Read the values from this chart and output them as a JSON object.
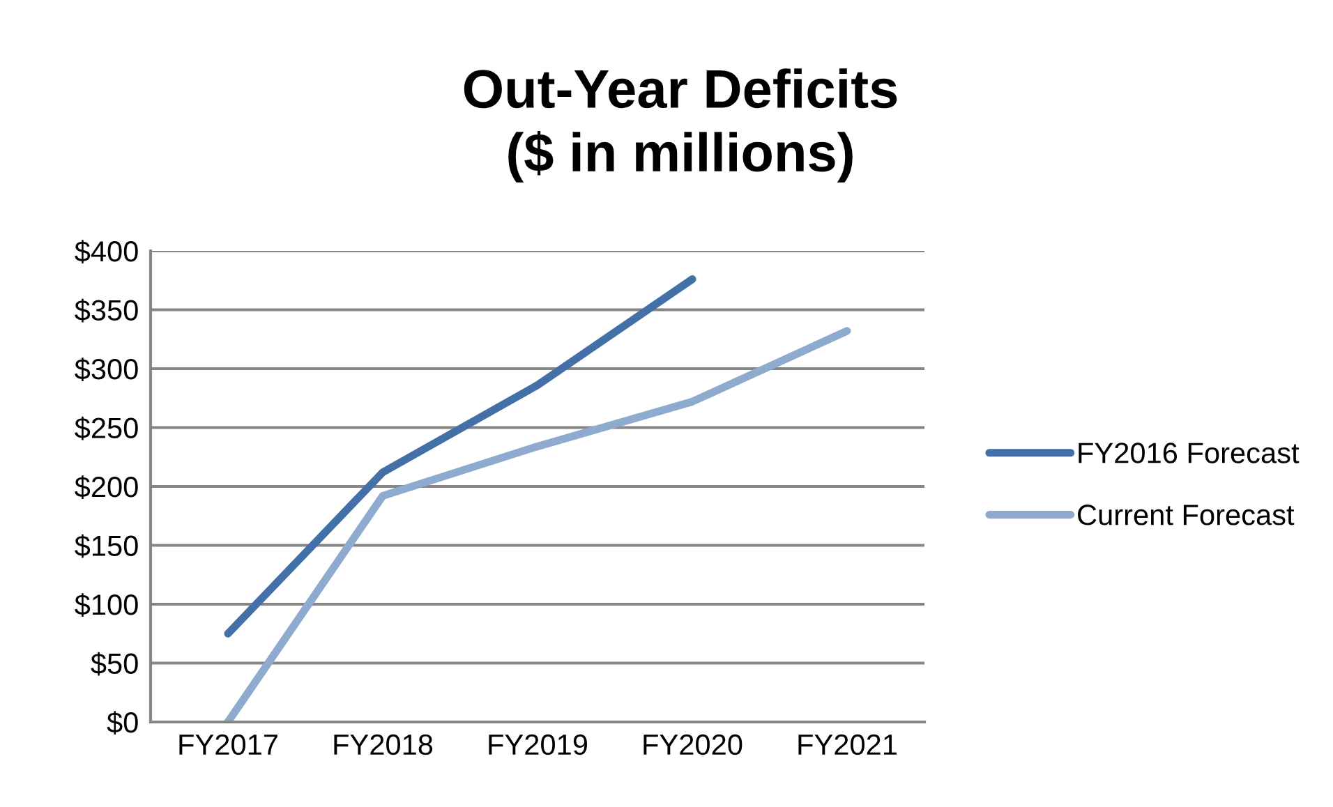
{
  "chart_data": {
    "type": "line",
    "title": "Out-Year Deficits\n($ in millions)",
    "categories": [
      "FY2017",
      "FY2018",
      "FY2019",
      "FY2020",
      "FY2021"
    ],
    "series": [
      {
        "name": "FY2016 Forecast",
        "color": "#4470a8",
        "values": [
          75,
          212,
          286,
          376,
          null
        ]
      },
      {
        "name": "Current Forecast",
        "color": "#8faacf",
        "values": [
          0,
          192,
          234,
          272,
          332
        ]
      }
    ],
    "ylim": [
      0,
      400
    ],
    "yticks": [
      {
        "value": 0,
        "label": "$0"
      },
      {
        "value": 50,
        "label": "$50"
      },
      {
        "value": 100,
        "label": "$100"
      },
      {
        "value": 150,
        "label": "$150"
      },
      {
        "value": 200,
        "label": "$200"
      },
      {
        "value": 250,
        "label": "$250"
      },
      {
        "value": 300,
        "label": "$300"
      },
      {
        "value": 350,
        "label": "$350"
      },
      {
        "value": 400,
        "label": "$400"
      }
    ],
    "grid": "y",
    "legend": "right",
    "marker": "none",
    "line_style": "solid"
  }
}
